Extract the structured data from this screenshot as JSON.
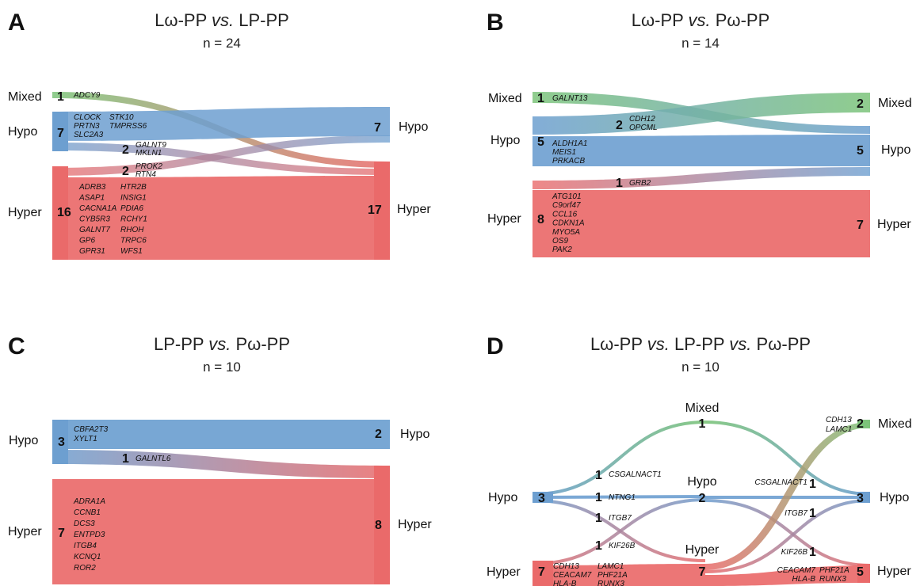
{
  "colors": {
    "mixed": "#7cc47a",
    "hypo": "#6d9fd0",
    "hyper": "#ea6a6a"
  },
  "panels": [
    {
      "letter": "A",
      "title_parts": [
        {
          "text": "Lω-PP ",
          "italic": false
        },
        {
          "text": "vs.",
          "italic": true
        },
        {
          "text": " LP-PP",
          "italic": false
        }
      ],
      "n_label": "n = 24",
      "nodes": [
        {
          "label": "Mixed",
          "count": "1",
          "side": "left"
        },
        {
          "label": "Hypo",
          "count": "7",
          "side": "left"
        },
        {
          "label": "Hyper",
          "count": "16",
          "side": "left"
        },
        {
          "label": "Hypo",
          "count": "7",
          "side": "right"
        },
        {
          "label": "Hyper",
          "count": "17",
          "side": "right"
        }
      ],
      "flow_counts": [
        "2",
        "2"
      ],
      "genes": [
        [
          "ADCY9"
        ],
        [
          "CLOCK",
          "PRTN3",
          "SLC2A3"
        ],
        [
          "STK10",
          "TMPRSS6"
        ],
        [
          "GALNT9",
          "MKLN1"
        ],
        [
          "PROK2",
          "RTN4"
        ],
        [
          "ADRB3",
          "ASAP1",
          "CACNA1A",
          "CYB5R3",
          "GALNT7",
          "GP6",
          "GPR31"
        ],
        [
          "HTR2B",
          "INSIG1",
          "PDIA6",
          "RCHY1",
          "RHOH",
          "TRPC6",
          "WFS1"
        ]
      ]
    },
    {
      "letter": "B",
      "title_parts": [
        {
          "text": "Lω-PP ",
          "italic": false
        },
        {
          "text": "vs.",
          "italic": true
        },
        {
          "text": " Pω-PP",
          "italic": false
        }
      ],
      "n_label": "n = 14",
      "nodes": [
        {
          "label": "Mixed",
          "count": "1",
          "side": "left"
        },
        {
          "label": "Hypo",
          "count": "5",
          "side": "left"
        },
        {
          "label": "Hyper",
          "count": "8",
          "side": "left"
        },
        {
          "label": "Mixed",
          "count": "2",
          "side": "right"
        },
        {
          "label": "Hypo",
          "count": "5",
          "side": "right"
        },
        {
          "label": "Hyper",
          "count": "7",
          "side": "right"
        }
      ],
      "flow_counts": [
        "2",
        "1"
      ],
      "genes": [
        [
          "GALNT13"
        ],
        [
          "CDH12",
          "OPCML"
        ],
        [
          "ALDH1A1",
          "MEIS1",
          "PRKACB"
        ],
        [
          "GRB2"
        ],
        [
          "ATG101",
          "C9orf47",
          "CCL16",
          "CDKN1A",
          "MYO5A",
          "OS9",
          "PAK2"
        ]
      ]
    },
    {
      "letter": "C",
      "title_parts": [
        {
          "text": "LP-PP ",
          "italic": false
        },
        {
          "text": "vs.",
          "italic": true
        },
        {
          "text": " Pω-PP",
          "italic": false
        }
      ],
      "n_label": "n = 10",
      "nodes": [
        {
          "label": "Hypo",
          "count": "3",
          "side": "left"
        },
        {
          "label": "Hyper",
          "count": "7",
          "side": "left"
        },
        {
          "label": "Hypo",
          "count": "2",
          "side": "right"
        },
        {
          "label": "Hyper",
          "count": "8",
          "side": "right"
        }
      ],
      "flow_counts": [
        "1"
      ],
      "genes": [
        [
          "CBFA2T3",
          "XYLT1"
        ],
        [
          "GALNTL6"
        ],
        [
          "ADRA1A",
          "CCNB1",
          "DCS3",
          "ENTPD3",
          "ITGB4",
          "KCNQ1",
          "ROR2"
        ]
      ]
    },
    {
      "letter": "D",
      "title_parts": [
        {
          "text": "Lω-PP ",
          "italic": false
        },
        {
          "text": "vs.",
          "italic": true
        },
        {
          "text": " LP-PP ",
          "italic": false
        },
        {
          "text": "vs.",
          "italic": true
        },
        {
          "text": " Pω-PP",
          "italic": false
        }
      ],
      "n_label": "n = 10",
      "nodes": [
        {
          "label": "Hypo",
          "count": "3",
          "side": "left"
        },
        {
          "label": "Hyper",
          "count": "7",
          "side": "left"
        },
        {
          "label": "Mixed",
          "count": "1",
          "side": "middle"
        },
        {
          "label": "Hypo",
          "count": "2",
          "side": "middle"
        },
        {
          "label": "Hyper",
          "count": "7",
          "side": "middle"
        },
        {
          "label": "Mixed",
          "count": "2",
          "side": "right"
        },
        {
          "label": "Hypo",
          "count": "3",
          "side": "right"
        },
        {
          "label": "Hyper",
          "count": "5",
          "side": "right"
        }
      ],
      "flow_counts": [
        "1",
        "1",
        "1",
        "1",
        "1",
        "1",
        "1"
      ],
      "genes": [
        [
          "CSGALNACT1"
        ],
        [
          "NTNG1"
        ],
        [
          "ITGB7"
        ],
        [
          "KIF26B"
        ],
        [
          "CDH13",
          "CEACAM7",
          "HLA-B"
        ],
        [
          "LAMC1",
          "PHF21A",
          "RUNX3"
        ],
        [
          "CDH13",
          "LAMC1"
        ],
        [
          "CSGALNACT1"
        ],
        [
          "ITGB7"
        ],
        [
          "KIF26B"
        ],
        [
          "CEACAM7",
          "HLA-B"
        ],
        [
          "PHF21A",
          "RUNX3"
        ]
      ]
    }
  ]
}
